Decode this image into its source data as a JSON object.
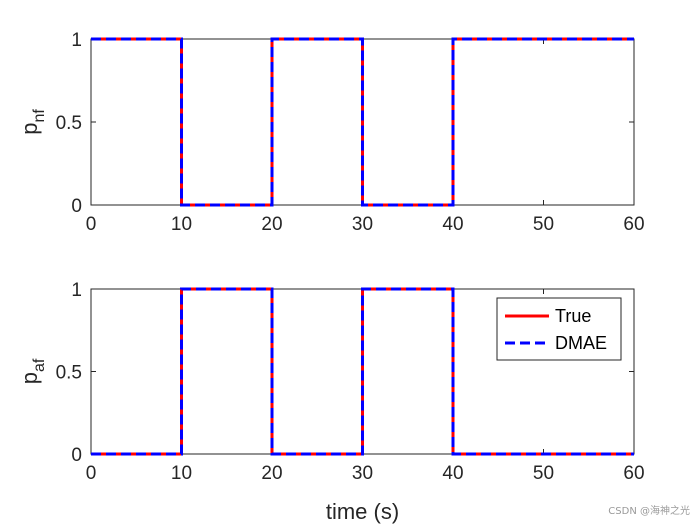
{
  "chart_data": [
    {
      "type": "line",
      "ylabel": "p",
      "ylabel_sub": "nf",
      "xlim": [
        0,
        60
      ],
      "ylim": [
        0,
        1
      ],
      "xticks": [
        0,
        10,
        20,
        30,
        40,
        50,
        60
      ],
      "yticks": [
        0,
        0.5,
        1
      ],
      "xlabel": "",
      "legend": false,
      "series": [
        {
          "name": "True",
          "color": "#ff0000",
          "style": "solid",
          "x": [
            0,
            10,
            10,
            20,
            20,
            30,
            30,
            40,
            40,
            60
          ],
          "y": [
            1,
            1,
            0,
            0,
            1,
            1,
            0,
            0,
            1,
            1
          ]
        },
        {
          "name": "DMAE",
          "color": "#0000ff",
          "style": "dashed",
          "x": [
            0,
            10,
            10,
            20,
            20,
            30,
            30,
            40,
            40,
            60
          ],
          "y": [
            1,
            1,
            0,
            0,
            1,
            1,
            0,
            0,
            1,
            1
          ]
        }
      ]
    },
    {
      "type": "line",
      "ylabel": "p",
      "ylabel_sub": "af",
      "xlim": [
        0,
        60
      ],
      "ylim": [
        0,
        1
      ],
      "xticks": [
        0,
        10,
        20,
        30,
        40,
        50,
        60
      ],
      "yticks": [
        0,
        0.5,
        1
      ],
      "xlabel": "time (s)",
      "legend": true,
      "legend_position": "top-right",
      "series": [
        {
          "name": "True",
          "color": "#ff0000",
          "style": "solid",
          "x": [
            0,
            10,
            10,
            20,
            20,
            30,
            30,
            40,
            40,
            60
          ],
          "y": [
            0,
            0,
            1,
            1,
            0,
            0,
            1,
            1,
            0,
            0
          ]
        },
        {
          "name": "DMAE",
          "color": "#0000ff",
          "style": "dashed",
          "x": [
            0,
            10,
            10,
            20,
            20,
            30,
            30,
            40,
            40,
            60
          ],
          "y": [
            0,
            0,
            1,
            1,
            0,
            0,
            1,
            1,
            0,
            0
          ]
        }
      ]
    }
  ],
  "watermark": "CSDN @海神之光"
}
